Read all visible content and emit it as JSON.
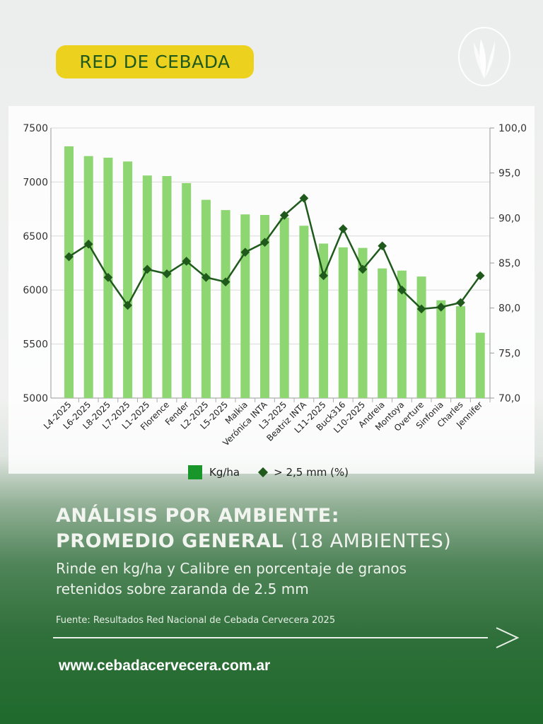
{
  "header": {
    "badge": "RED DE CEBADA",
    "logo_icon": "wheat-icon"
  },
  "chart_data": {
    "type": "bar+line",
    "categories": [
      "L4-2025",
      "L6-2025",
      "L8-2025",
      "L7-2025",
      "L1-2025",
      "Florence",
      "Fender",
      "L2-2025",
      "L5-2025",
      "Malkia",
      "Verónica INTA",
      "L3-2025",
      "Beatriz INTA",
      "L11-2025",
      "Buck316",
      "L10-2025",
      "Andreia",
      "Montoya",
      "Overture",
      "Sinfonia",
      "Charles",
      "Jennifer"
    ],
    "series": [
      {
        "name": "Kg/ha",
        "type": "bar",
        "axis": "left",
        "color": "#8dd672",
        "values": [
          7330,
          7240,
          7225,
          7190,
          7060,
          7055,
          6990,
          6835,
          6740,
          6700,
          6695,
          6670,
          6595,
          6430,
          6395,
          6390,
          6200,
          6180,
          6125,
          5905,
          5850,
          5605
        ]
      },
      {
        "name": "> 2,5 mm (%)",
        "type": "line",
        "axis": "right",
        "color": "#1f5a1c",
        "values": [
          85.7,
          87.1,
          83.4,
          80.3,
          84.3,
          83.8,
          85.2,
          83.4,
          82.9,
          86.2,
          87.3,
          90.3,
          92.2,
          83.6,
          88.8,
          84.3,
          86.9,
          82.0,
          79.9,
          80.1,
          80.6,
          83.6
        ]
      }
    ],
    "y_left": {
      "lim": [
        5000,
        7500
      ],
      "ticks": [
        "5000",
        "5500",
        "6000",
        "6500",
        "7000",
        "7500"
      ]
    },
    "y_right": {
      "lim": [
        70,
        100
      ],
      "ticks": [
        "70,0",
        "75,0",
        "80,0",
        "85,0",
        "90,0",
        "95,0",
        "100,0"
      ]
    },
    "grid": true,
    "legend": "bottom"
  },
  "legend": {
    "bar_label": "Kg/ha",
    "line_label": "> 2,5 mm (%)"
  },
  "text": {
    "title_bold_1": "ANÁLISIS POR AMBIENTE:",
    "title_bold_2": "PROMEDIO GENERAL",
    "title_light": "(18 AMBIENTES)",
    "subtitle_1": "Rinde en kg/ha y Calibre en porcentaje de granos",
    "subtitle_2": "retenidos sobre zaranda de 2.5 mm",
    "source": "Fuente: Resultados Red Nacional de Cebada Cervecera 2025",
    "url": "www.cebadacervecera.com.ar"
  }
}
